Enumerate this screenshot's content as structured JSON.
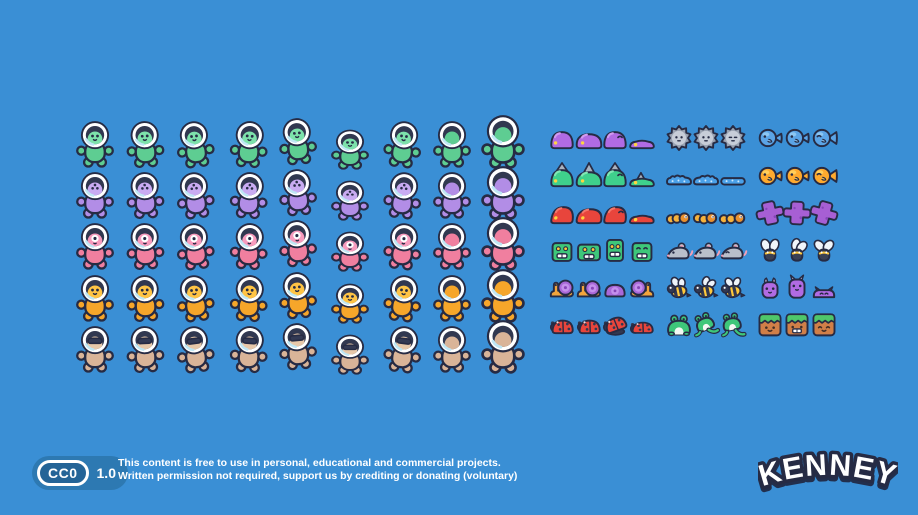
{
  "page": {
    "background": "#3a8fd5"
  },
  "palette": {
    "outline": "#262b44",
    "helmet_ring": "#ffffff",
    "helmet_inner": "#313850",
    "glass_shine": "#bfe7f5"
  },
  "left_grid": {
    "label": "alien-characters",
    "poses": [
      "idle",
      "wave",
      "walk",
      "stand-wide",
      "float",
      "crouch",
      "lean",
      "blank",
      "blank-large"
    ],
    "rows": [
      {
        "name": "green-alien",
        "body": "#5ecd92",
        "face": "#7de2ab",
        "eyes": "two"
      },
      {
        "name": "purple-alien",
        "body": "#b28de6",
        "face": "#c9abf2",
        "eyes": "three"
      },
      {
        "name": "pink-alien",
        "body": "#f07f9f",
        "face": "#f79bbd",
        "eyes": "one"
      },
      {
        "name": "orange-alien",
        "body": "#f6a62a",
        "face": "#ffc445",
        "eyes": "smile"
      },
      {
        "name": "beige-alien",
        "body": "#d9b498",
        "face": "#e7c8a9",
        "eyes": "visor"
      }
    ]
  },
  "right_grid": {
    "label": "creatures-and-props",
    "rows": [
      [
        {
          "type": "purple-slime",
          "variants": 4
        },
        {
          "type": "rock-sun",
          "variants": 3
        },
        {
          "type": "blue-fish",
          "variants": 3
        }
      ],
      [
        {
          "type": "spike-slime",
          "variants": 4
        },
        {
          "type": "water-puddle",
          "variants": 3
        },
        {
          "type": "orange-fish",
          "variants": 3
        }
      ],
      [
        {
          "type": "lava-slime",
          "variants": 4
        },
        {
          "type": "caterpillar",
          "variants": 3
        },
        {
          "type": "purple-cross",
          "variants": 3
        }
      ],
      [
        {
          "type": "block-creature",
          "variants": 4
        },
        {
          "type": "mouse",
          "variants": 3
        },
        {
          "type": "fly",
          "variants": 3
        }
      ],
      [
        {
          "type": "snail",
          "variants": 4
        },
        {
          "type": "bee",
          "variants": 3
        },
        {
          "type": "horned-slug",
          "variants": 3
        }
      ],
      [
        {
          "type": "ladybug",
          "variants": 4
        },
        {
          "type": "frog",
          "variants": 3
        },
        {
          "type": "grass-block",
          "variants": 3
        }
      ]
    ],
    "colors": {
      "purple-slime": {
        "fill": "#b16be3",
        "hi": "#d29bf0",
        "eye": "#ffd43f"
      },
      "spike-slime": {
        "fill": "#3fd08c",
        "hi": "#82e6b4",
        "spike": "#aab2bf",
        "eye": "#ffd43f"
      },
      "lava-slime": {
        "fill": "#e8453c",
        "hi": "#f4766a",
        "accent": "#ffb03c",
        "eye": "#ffd43f"
      },
      "rock-sun": {
        "outer": "#9aa3b2",
        "inner": "#c7cdd8"
      },
      "water-puddle": {
        "fill": "#4aa0e8",
        "spark": "#cfe8fb"
      },
      "blue-fish": {
        "fill": "#5ba4e6",
        "hi": "#8cc6f2"
      },
      "orange-fish": {
        "fill": "#ffaa2e",
        "hi": "#ffcf5c"
      },
      "caterpillar": {
        "body": "#f5b23c",
        "head": "#e8902e"
      },
      "purple-cross": {
        "fill": "#a75fd4",
        "dot": "#8746b8"
      },
      "block-creature": {
        "fill": "#3ec77a",
        "eye": "#ffc93c",
        "mouth": "#ffffff"
      },
      "mouse": {
        "fill": "#b9bfca",
        "pink": "#f2a0b8"
      },
      "fly": {
        "body": "#3a4054",
        "wing": "#f0f5fa",
        "band": "#ffc93c"
      },
      "snail": {
        "body": "#f2a53c",
        "shell": "#a968d8",
        "shell_inner": "#c490ec",
        "dot": "#8746b8"
      },
      "bee": {
        "yellow": "#ffc93c",
        "dark": "#323850",
        "wing": "#eef4fa"
      },
      "horned-slug": {
        "fill": "#b16be3",
        "hi": "#e8d8f8"
      },
      "ladybug": {
        "shell": "#e8453c",
        "dark": "#323850",
        "hi": "#f4766a"
      },
      "frog": {
        "fill": "#3ec77a",
        "belly": "#f4f8f4"
      },
      "grass-block": {
        "dirt": "#d07f48",
        "grass": "#4fc76a",
        "face": "#402d26"
      }
    }
  },
  "footer": {
    "badge": {
      "label": "CC0",
      "version": "1.0"
    },
    "line1": "This content is free to use in personal, educational and commercial projects.",
    "line2": "Written permission not required, support us by crediting or donating (voluntary)"
  },
  "logo": {
    "text": "KENNEY"
  }
}
